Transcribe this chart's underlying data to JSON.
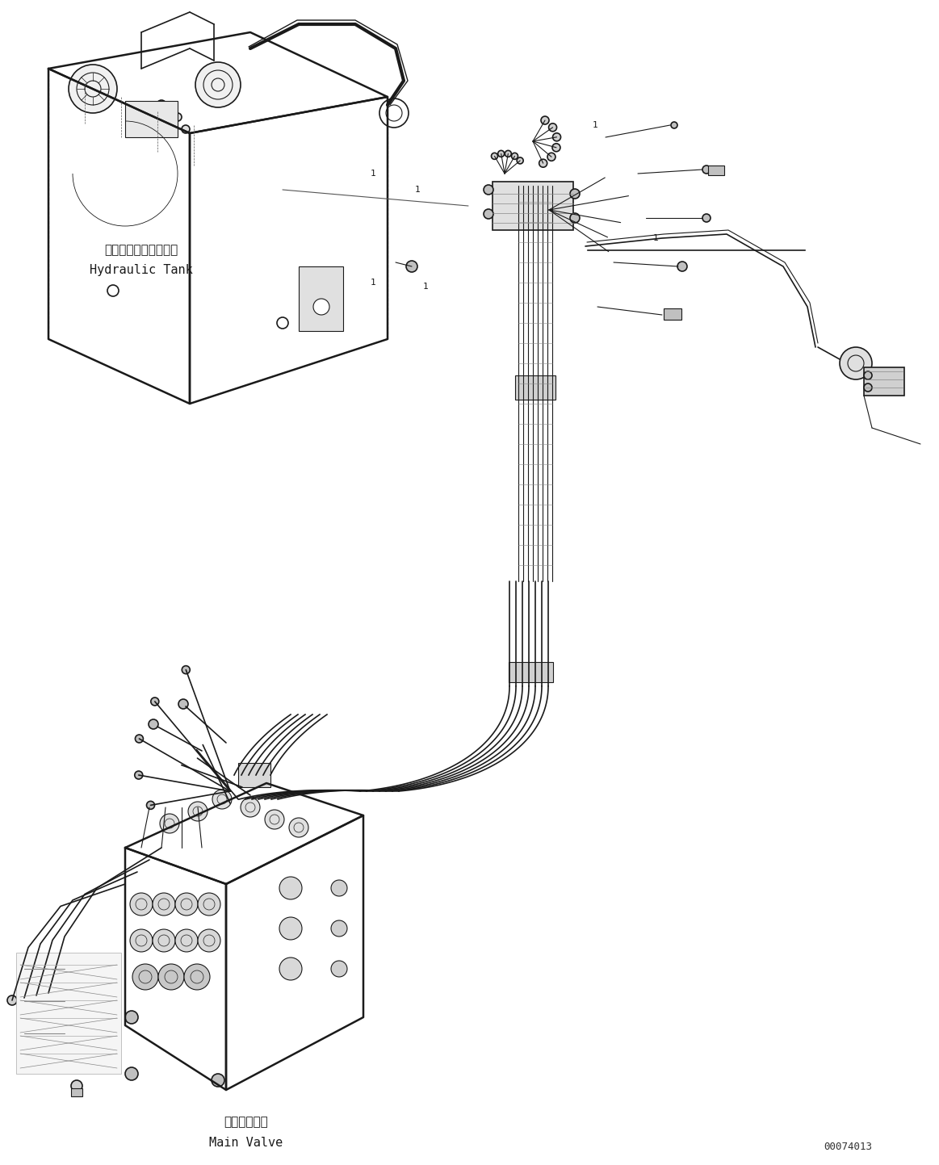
{
  "background_color": "#ffffff",
  "line_color": "#1a1a1a",
  "fig_width": 11.63,
  "fig_height": 14.43,
  "dpi": 100,
  "watermark": "00074013",
  "label_hydraulic_tank_jp": "ハイドロリックタンク",
  "label_hydraulic_tank_en": "Hydraulic Tank",
  "label_main_valve_jp": "メインバルブ",
  "label_main_valve_en": "Main Valve"
}
